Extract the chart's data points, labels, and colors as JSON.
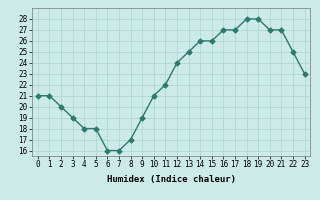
{
  "x": [
    0,
    1,
    2,
    3,
    4,
    5,
    6,
    7,
    8,
    9,
    10,
    11,
    12,
    13,
    14,
    15,
    16,
    17,
    18,
    19,
    20,
    21,
    22,
    23
  ],
  "y": [
    21,
    21,
    20,
    19,
    18,
    18,
    16,
    16,
    17,
    19,
    21,
    22,
    24,
    25,
    26,
    26,
    27,
    27,
    28,
    28,
    27,
    27,
    25,
    23
  ],
  "line_color": "#2d7a6e",
  "bg_color": "#cceae7",
  "grid_color_major": "#aad4d0",
  "grid_color_minor": "#bbdeda",
  "xlabel": "Humidex (Indice chaleur)",
  "ylim": [
    15.5,
    29.0
  ],
  "xlim": [
    -0.5,
    23.5
  ],
  "yticks": [
    16,
    17,
    18,
    19,
    20,
    21,
    22,
    23,
    24,
    25,
    26,
    27,
    28
  ],
  "xticks": [
    0,
    1,
    2,
    3,
    4,
    5,
    6,
    7,
    8,
    9,
    10,
    11,
    12,
    13,
    14,
    15,
    16,
    17,
    18,
    19,
    20,
    21,
    22,
    23
  ],
  "xtick_labels": [
    "0",
    "1",
    "2",
    "3",
    "4",
    "5",
    "6",
    "7",
    "8",
    "9",
    "10",
    "11",
    "12",
    "13",
    "14",
    "15",
    "16",
    "17",
    "18",
    "19",
    "20",
    "21",
    "22",
    "23"
  ],
  "marker": "D",
  "marker_size": 2.5,
  "line_width": 1.0,
  "label_fontsize": 6.5,
  "tick_fontsize": 5.5
}
